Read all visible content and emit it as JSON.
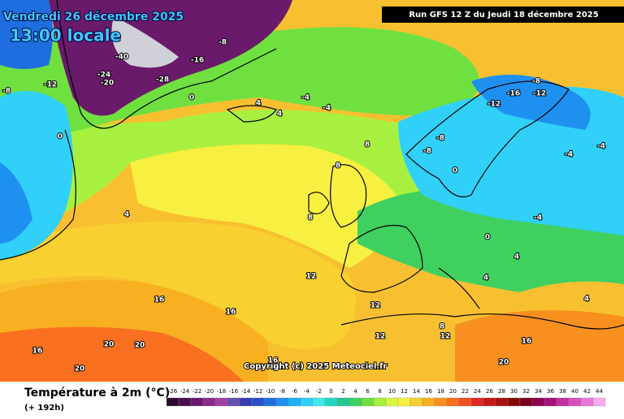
{
  "header": {
    "date": "Vendredi 26 décembre 2025",
    "time": "13:00 locale",
    "run": "Run GFS 12 Z du Jeudi 18 décembre 2025",
    "copyright": "Copyright (c) 2025 Meteociel.fr"
  },
  "legend": {
    "title": "Température à 2m (°C)",
    "lead": "(+ 192h)",
    "labels": [
      -26,
      -24,
      -22,
      -20,
      -18,
      -16,
      -14,
      -12,
      -10,
      -8,
      -6,
      -4,
      -2,
      0,
      2,
      4,
      6,
      8,
      10,
      12,
      14,
      16,
      18,
      20,
      22,
      24,
      26,
      28,
      30,
      32,
      34,
      36,
      38,
      40,
      42,
      44
    ],
    "colors": [
      "#2a0a2e",
      "#4b0d4d",
      "#6a1a6a",
      "#8a2a8a",
      "#a040a0",
      "#6050b0",
      "#3a3ab0",
      "#2850c8",
      "#1e6ee0",
      "#1e90f0",
      "#20b0f8",
      "#30d0f8",
      "#40e8f0",
      "#20d8c0",
      "#20c890",
      "#40d060",
      "#70e040",
      "#a8f040",
      "#d8f840",
      "#f8f040",
      "#f8d030",
      "#f8b020",
      "#f89020",
      "#f87020",
      "#f05020",
      "#e02820",
      "#c81818",
      "#a81010",
      "#880808",
      "#780020",
      "#900050",
      "#a8107a",
      "#c030a0",
      "#d850c0",
      "#e878d8",
      "#f8a8f0"
    ]
  },
  "map_labels": [
    -40,
    -28,
    -24,
    -20,
    -16,
    -12,
    -8,
    -8,
    -4,
    -4,
    0,
    0,
    4,
    4,
    4,
    8,
    8,
    8,
    12,
    12,
    12,
    16,
    16,
    16,
    16,
    20,
    20,
    20,
    -12,
    -16,
    -12,
    -8,
    -4,
    -4,
    0,
    4,
    4,
    8,
    12,
    16,
    20,
    -8,
    -8,
    0,
    4,
    -4
  ]
}
